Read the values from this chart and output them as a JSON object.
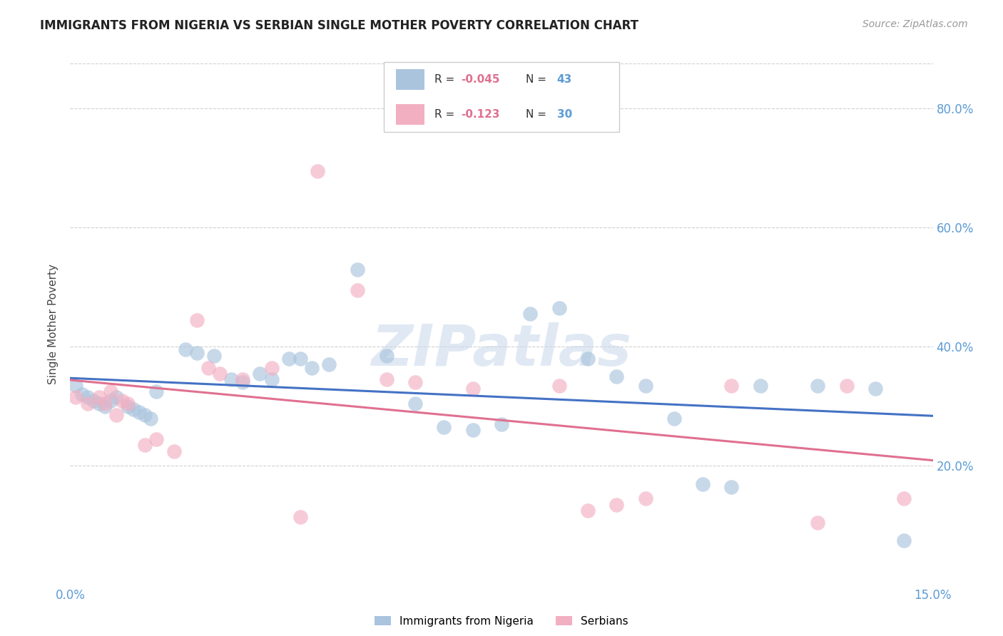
{
  "title": "IMMIGRANTS FROM NIGERIA VS SERBIAN SINGLE MOTHER POVERTY CORRELATION CHART",
  "source": "Source: ZipAtlas.com",
  "ylabel": "Single Mother Poverty",
  "xlim": [
    0.0,
    0.15
  ],
  "ylim": [
    0.0,
    0.875
  ],
  "ytick_vals": [
    0.2,
    0.4,
    0.6,
    0.8
  ],
  "ytick_labels": [
    "20.0%",
    "40.0%",
    "60.0%",
    "80.0%"
  ],
  "xtick_positions": [
    0.0,
    0.03,
    0.06,
    0.09,
    0.12,
    0.15
  ],
  "xtick_labels": [
    "0.0%",
    "",
    "",
    "",
    "",
    "15.0%"
  ],
  "nigeria_x": [
    0.001,
    0.002,
    0.003,
    0.004,
    0.005,
    0.006,
    0.007,
    0.008,
    0.01,
    0.011,
    0.012,
    0.013,
    0.014,
    0.015,
    0.02,
    0.022,
    0.025,
    0.028,
    0.03,
    0.033,
    0.035,
    0.038,
    0.04,
    0.042,
    0.045,
    0.05,
    0.055,
    0.06,
    0.065,
    0.07,
    0.075,
    0.08,
    0.085,
    0.09,
    0.095,
    0.1,
    0.105,
    0.11,
    0.115,
    0.12,
    0.13,
    0.14,
    0.145
  ],
  "nigeria_y": [
    0.335,
    0.32,
    0.315,
    0.31,
    0.305,
    0.3,
    0.31,
    0.315,
    0.3,
    0.295,
    0.29,
    0.285,
    0.28,
    0.325,
    0.395,
    0.39,
    0.385,
    0.345,
    0.34,
    0.355,
    0.345,
    0.38,
    0.38,
    0.365,
    0.37,
    0.53,
    0.385,
    0.305,
    0.265,
    0.26,
    0.27,
    0.455,
    0.465,
    0.38,
    0.35,
    0.335,
    0.28,
    0.17,
    0.165,
    0.335,
    0.335,
    0.33,
    0.075
  ],
  "serbian_x": [
    0.001,
    0.003,
    0.005,
    0.006,
    0.007,
    0.008,
    0.009,
    0.01,
    0.013,
    0.015,
    0.018,
    0.022,
    0.024,
    0.026,
    0.03,
    0.035,
    0.04,
    0.043,
    0.05,
    0.055,
    0.06,
    0.07,
    0.085,
    0.09,
    0.095,
    0.1,
    0.115,
    0.13,
    0.135,
    0.145
  ],
  "serbian_y": [
    0.315,
    0.305,
    0.315,
    0.305,
    0.325,
    0.285,
    0.31,
    0.305,
    0.235,
    0.245,
    0.225,
    0.445,
    0.365,
    0.355,
    0.345,
    0.365,
    0.115,
    0.695,
    0.495,
    0.345,
    0.34,
    0.33,
    0.335,
    0.125,
    0.135,
    0.145,
    0.335,
    0.105,
    0.335,
    0.145
  ],
  "bg_color": "#ffffff",
  "dot_color_nigeria": "#aac4de",
  "dot_color_serbian": "#f2afc2",
  "line_color_nigeria": "#4472c4",
  "line_color_serbian": "#e07090",
  "axis_color": "#5b9bd5",
  "grid_color": "#d0d0d0",
  "watermark": "ZIPatlas",
  "title_fontsize": 12,
  "source_fontsize": 10,
  "label_fontsize": 11,
  "tick_fontsize": 12,
  "legend_label_nigeria": "Immigrants from Nigeria",
  "legend_label_serbian": "Serbians",
  "legend_R_nigeria": "-0.045",
  "legend_N_nigeria": "43",
  "legend_R_serbian": "-0.123",
  "legend_N_serbian": "30"
}
